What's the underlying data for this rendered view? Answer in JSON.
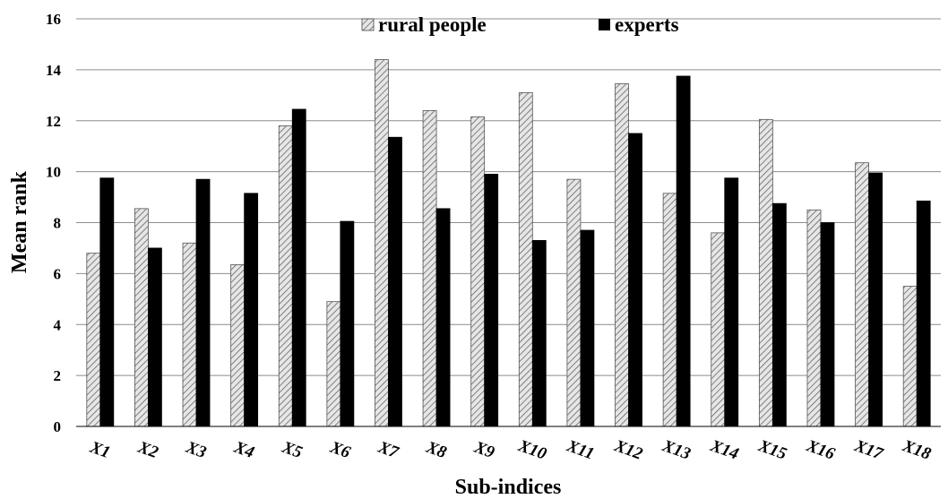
{
  "chart_data": {
    "type": "bar",
    "categories": [
      "X1",
      "X2",
      "X3",
      "X4",
      "X5",
      "X6",
      "X7",
      "X8",
      "X9",
      "X10",
      "X11",
      "X12",
      "X13",
      "X14",
      "X15",
      "X16",
      "X17",
      "X18"
    ],
    "series": [
      {
        "name": "rural people",
        "color": "#d9d9d9",
        "pattern": "diagonal-hatch",
        "values": [
          6.8,
          8.55,
          7.2,
          6.35,
          11.8,
          4.9,
          14.4,
          12.4,
          12.15,
          13.1,
          9.7,
          13.45,
          9.15,
          7.6,
          12.05,
          8.5,
          10.35,
          5.5
        ]
      },
      {
        "name": "experts",
        "color": "#000000",
        "pattern": "solid",
        "values": [
          9.75,
          7.0,
          9.7,
          9.15,
          12.45,
          8.05,
          11.35,
          8.55,
          9.9,
          7.3,
          7.7,
          11.5,
          13.75,
          9.75,
          8.75,
          8.0,
          9.95,
          8.85
        ]
      }
    ],
    "xlabel": "Sub-indices",
    "ylabel": "Mean rank",
    "ylim": [
      0,
      16
    ],
    "yticks": [
      "0",
      "2",
      "4",
      "6",
      "8",
      "10",
      "12",
      "14",
      "16"
    ],
    "grid": true,
    "legend": "top-center"
  }
}
